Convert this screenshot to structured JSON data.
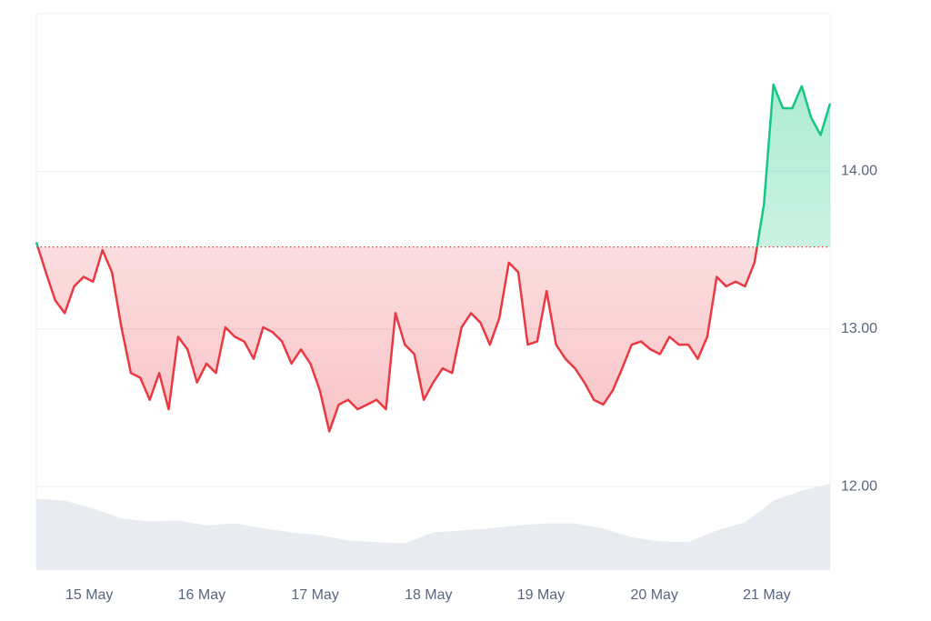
{
  "chart_data": {
    "type": "line",
    "series": [
      {
        "values": [
          13.55,
          13.36,
          13.18,
          13.1,
          13.27,
          13.33,
          13.3,
          13.5,
          13.36,
          13.01,
          12.72,
          12.69,
          12.55,
          12.72,
          12.49,
          12.95,
          12.87,
          12.66,
          12.78,
          12.72,
          13.01,
          12.95,
          12.92,
          12.81,
          13.01,
          12.98,
          12.92,
          12.78,
          12.87,
          12.78,
          12.61,
          12.35,
          12.52,
          12.55,
          12.49,
          12.52,
          12.55,
          12.49,
          13.1,
          12.9,
          12.84,
          12.55,
          12.66,
          12.75,
          12.72,
          13.01,
          13.1,
          13.04,
          12.9,
          13.07,
          13.42,
          13.36,
          12.9,
          12.92,
          13.24,
          12.9,
          12.81,
          12.75,
          12.66,
          12.55,
          12.52,
          12.61,
          12.75,
          12.9,
          12.92,
          12.87,
          12.84,
          12.95,
          12.9,
          12.9,
          12.81,
          12.95,
          13.33,
          13.27,
          13.3,
          13.27,
          13.42,
          13.79,
          14.55,
          14.4,
          14.4,
          14.54,
          14.34,
          14.23,
          14.43
        ]
      }
    ],
    "baseline": 13.52,
    "up_color": "#16c784",
    "down_color": "#ea3943",
    "volume": [
      72,
      70,
      62,
      52,
      49,
      50,
      45,
      47,
      42,
      38,
      35,
      30,
      28,
      27,
      38,
      40,
      42,
      45,
      47,
      47,
      42,
      33,
      29,
      28,
      40,
      48,
      70,
      80,
      87
    ],
    "volume_color": "#e8ebef",
    "xlim": [
      0,
      84
    ],
    "xticks": [
      {
        "value": 5.6,
        "label": "15 May"
      },
      {
        "value": 17.5,
        "label": "16 May"
      },
      {
        "value": 29.5,
        "label": "17 May"
      },
      {
        "value": 41.5,
        "label": "18 May"
      },
      {
        "value": 53.4,
        "label": "19 May"
      },
      {
        "value": 65.4,
        "label": "20 May"
      },
      {
        "value": 77.3,
        "label": "21 May"
      }
    ],
    "ylim": [
      11.47,
      15.0
    ],
    "yticks": [
      {
        "value": 12,
        "label": "12.00"
      },
      {
        "value": 13,
        "label": "13.00"
      },
      {
        "value": 14,
        "label": "14.00"
      }
    ],
    "grid": true
  }
}
